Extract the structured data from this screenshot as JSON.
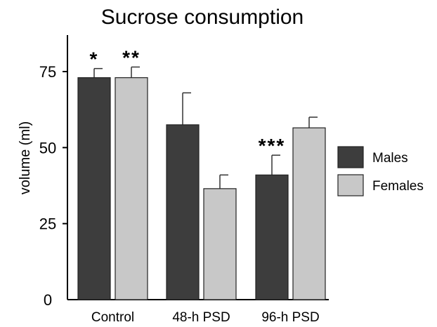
{
  "chart_data": {
    "type": "bar",
    "title": "Sucrose consumption",
    "xlabel": "",
    "ylabel": "volume (ml)",
    "ylim": [
      0,
      87
    ],
    "yticks": [
      0,
      25,
      50,
      75
    ],
    "grid": false,
    "legend_position": "right",
    "categories": [
      "Control",
      "48-h PSD",
      "96-h PSD"
    ],
    "series": [
      {
        "name": "Males",
        "color": "#3d3d3d",
        "values": [
          73,
          57.5,
          41
        ],
        "errors": [
          3,
          10.5,
          6.5
        ]
      },
      {
        "name": "Females",
        "color": "#c8c8c8",
        "values": [
          73,
          36.5,
          56.5
        ],
        "errors": [
          3.5,
          4.5,
          3.5
        ]
      }
    ],
    "annotations": [
      {
        "text": "*",
        "category": "Control",
        "series": "Males"
      },
      {
        "text": "**",
        "category": "Control",
        "series": "Females"
      },
      {
        "text": "***",
        "category": "96-h PSD",
        "series": "Males"
      }
    ]
  }
}
